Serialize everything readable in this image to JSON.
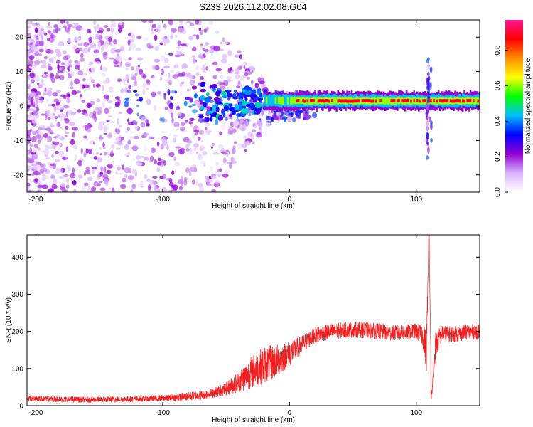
{
  "figure_title": "S233.2026.112.02.08.G04",
  "colors": {
    "snr_line": "#ee2222",
    "frame": "#000000",
    "background": "#ffffff"
  },
  "chart_data": [
    {
      "type": "heatmap",
      "title": "S233.2026.112.02.08.G04",
      "xlabel": "Height of straight line (km)",
      "ylabel": "Frequency (Hz)",
      "xlim": [
        -207,
        150
      ],
      "ylim": [
        -25,
        25
      ],
      "x_ticks": [
        -200,
        -100,
        0,
        100
      ],
      "y_ticks": [
        -20,
        -10,
        0,
        10,
        20
      ],
      "colorbar": {
        "label": "Normalized spectral amplitude",
        "range": [
          0,
          0.97
        ],
        "ticks": [
          0.0,
          0.2,
          0.4,
          0.6,
          0.8
        ],
        "tick_labels": [
          "0.0",
          "0.2",
          "0.4",
          "0.6",
          "0.8"
        ],
        "colormap": [
          "#ffffff",
          "#d9b3ff",
          "#9400d3",
          "#0000ff",
          "#00bfff",
          "#00ff00",
          "#ffff00",
          "#ff8c00",
          "#ff0000",
          "#ff1493"
        ]
      },
      "features": [
        {
          "name": "scattered noise",
          "x_range": [
            -207,
            -20
          ],
          "freq_range": [
            -25,
            25
          ],
          "amplitude": 0.15
        },
        {
          "name": "carrier band",
          "x_range": [
            -20,
            150
          ],
          "freq_center": 1.5,
          "amplitude": 0.9
        },
        {
          "name": "disturbance",
          "x_center": 110,
          "freq_range": [
            -15,
            15
          ],
          "amplitude": 0.4
        }
      ]
    },
    {
      "type": "line",
      "xlabel": "Height of straight line (km)",
      "ylabel": "SNR (10 * v/v)",
      "xlim": [
        -207,
        150
      ],
      "ylim": [
        0,
        460
      ],
      "x_ticks": [
        -200,
        -100,
        0,
        100
      ],
      "y_ticks": [
        0,
        100,
        200,
        300,
        400
      ],
      "series": [
        {
          "name": "SNR",
          "x": [
            -207,
            -180,
            -160,
            -140,
            -120,
            -100,
            -90,
            -80,
            -70,
            -60,
            -50,
            -40,
            -30,
            -20,
            -10,
            0,
            10,
            20,
            30,
            40,
            50,
            60,
            70,
            80,
            90,
            100,
            105,
            108,
            110,
            112,
            115,
            120,
            130,
            140,
            150
          ],
          "values": [
            20,
            17,
            16,
            17,
            18,
            20,
            22,
            25,
            28,
            35,
            45,
            65,
            90,
            110,
            120,
            140,
            165,
            190,
            198,
            202,
            205,
            203,
            200,
            195,
            198,
            200,
            190,
            150,
            460,
            20,
            160,
            195,
            192,
            198,
            200
          ],
          "noise_amplitude": [
            8,
            8,
            8,
            8,
            8,
            9,
            10,
            12,
            12,
            14,
            18,
            30,
            45,
            50,
            45,
            35,
            25,
            22,
            22,
            22,
            22,
            22,
            22,
            22,
            22,
            22,
            30,
            60,
            0,
            0,
            40,
            22,
            22,
            22,
            22
          ]
        }
      ]
    }
  ]
}
